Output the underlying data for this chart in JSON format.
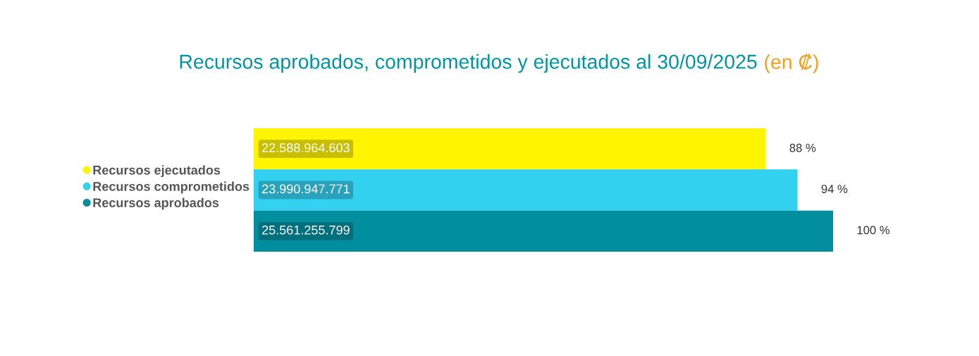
{
  "chart_data": {
    "type": "bar",
    "orientation": "horizontal",
    "title": "Recursos aprobados, comprometidos y ejecutados al 30/09/2025",
    "subtitle": "(en ₡)",
    "categories": [
      null
    ],
    "series": [
      {
        "name": "Recursos ejecutados",
        "color": "#fff500",
        "values": [
          22588964603
        ],
        "value_labels": [
          "22.588.964.603"
        ]
      },
      {
        "name": "Recursos comprometidos",
        "color": "#33d1f0",
        "values": [
          23990947771
        ],
        "value_labels": [
          "23.990.947.771"
        ]
      },
      {
        "name": "Recursos aprobados",
        "color": "#018e9f",
        "values": [
          25561255799
        ],
        "value_labels": [
          "25.561.255.799"
        ]
      }
    ],
    "annotations": [
      {
        "text": "88 %",
        "x": 22588964603
      },
      {
        "text": "94 %",
        "x": 23990947771
      },
      {
        "text": "100 %",
        "x": 25561255799
      }
    ],
    "legend": "left"
  }
}
